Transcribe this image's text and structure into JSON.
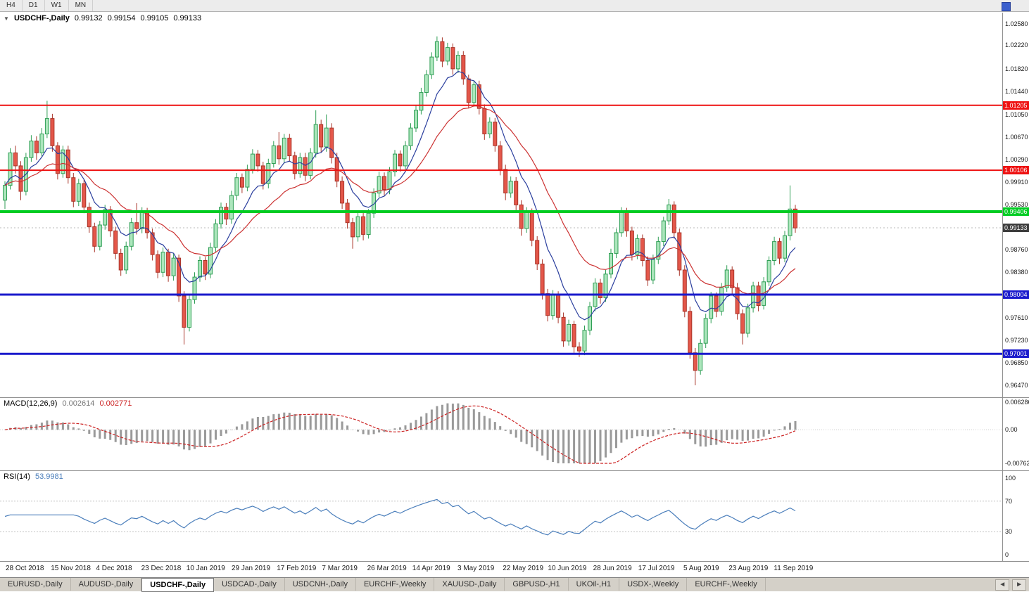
{
  "toolbar": {
    "timeframes": [
      "H4",
      "D1",
      "W1",
      "MN"
    ]
  },
  "icons": {
    "collapse": "▼",
    "tab_prev": "◄",
    "tab_next": "►"
  },
  "chart_data": {
    "type": "candlestick",
    "title": "USDCHF-,Daily",
    "ohlc_header": {
      "open": "0.99132",
      "high": "0.99154",
      "low": "0.99105",
      "close": "0.99133"
    },
    "x_labels": [
      "28 Oct 2018",
      "15 Nov 2018",
      "4 Dec 2018",
      "23 Dec 2018",
      "10 Jan 2019",
      "29 Jan 2019",
      "17 Feb 2019",
      "7 Mar 2019",
      "26 Mar 2019",
      "14 Apr 2019",
      "3 May 2019",
      "22 May 2019",
      "10 Jun 2019",
      "28 Jun 2019",
      "17 Jul 2019",
      "5 Aug 2019",
      "23 Aug 2019",
      "11 Sep 2019"
    ],
    "price_axis": {
      "min": 0.9647,
      "max": 1.0258,
      "ticks": [
        "1.02580",
        "1.02220",
        "1.01820",
        "1.01440",
        "1.01050",
        "1.00670",
        "1.00290",
        "0.99910",
        "0.99530",
        "0.98760",
        "0.98380",
        "0.97610",
        "0.97230",
        "0.96850",
        "0.96470"
      ]
    },
    "levels": [
      {
        "value": 1.01205,
        "label": "1.01205",
        "color": "#ee1111",
        "width": 2
      },
      {
        "value": 1.00106,
        "label": "1.00106",
        "color": "#ee1111",
        "width": 2
      },
      {
        "value": 0.99406,
        "label": "0.99406",
        "color": "#00cc22",
        "width": 4
      },
      {
        "value": 0.98004,
        "label": "0.98004",
        "color": "#1a1acc",
        "width": 3
      },
      {
        "value": 0.97001,
        "label": "0.97001",
        "color": "#1a1acc",
        "width": 3
      }
    ],
    "current_price": {
      "value": 0.99133,
      "label": "0.99133",
      "bg": "#3d3d3d"
    },
    "style": {
      "up_fill": "#ace6bc",
      "up_stroke": "#2f9e55",
      "down_fill": "#e4574a",
      "down_stroke": "#a83428",
      "ma_fast_color": "#2b3f9e",
      "ma_slow_color": "#cc3333",
      "ma_fast_period": 8,
      "ma_slow_period": 21
    },
    "ohlc": [
      [
        0.996,
        0.9992,
        0.9945,
        0.9985
      ],
      [
        0.9985,
        1.0048,
        0.9978,
        1.004
      ],
      [
        1.004,
        1.0052,
        1.0005,
        1.0018
      ],
      [
        1.0018,
        1.0026,
        0.996,
        0.9975
      ],
      [
        0.9975,
        1.004,
        0.9968,
        1.0032
      ],
      [
        1.0032,
        1.007,
        1.0025,
        1.006
      ],
      [
        1.006,
        1.0068,
        1.0028,
        1.004
      ],
      [
        1.004,
        1.0082,
        1.0034,
        1.0072
      ],
      [
        1.0072,
        1.0128,
        1.0065,
        1.0098
      ],
      [
        1.0098,
        1.0106,
        1.0042,
        1.0052
      ],
      [
        1.0052,
        1.0058,
        0.9995,
        1.0005
      ],
      [
        1.0005,
        1.0052,
        0.9998,
        1.0045
      ],
      [
        1.0045,
        1.0052,
        0.9988,
        0.9998
      ],
      [
        0.9998,
        1.0006,
        0.9948,
        0.9958
      ],
      [
        0.9958,
        0.9996,
        0.995,
        0.9988
      ],
      [
        0.9988,
        0.9995,
        0.9938,
        0.9948
      ],
      [
        0.9948,
        0.9956,
        0.9905,
        0.9915
      ],
      [
        0.9915,
        0.9922,
        0.9872,
        0.9882
      ],
      [
        0.9882,
        0.9925,
        0.9875,
        0.9918
      ],
      [
        0.9918,
        0.9952,
        0.991,
        0.9944
      ],
      [
        0.9944,
        0.995,
        0.9898,
        0.9908
      ],
      [
        0.9908,
        0.9915,
        0.986,
        0.987
      ],
      [
        0.987,
        0.9878,
        0.9832,
        0.9842
      ],
      [
        0.9842,
        0.989,
        0.9835,
        0.9882
      ],
      [
        0.9882,
        0.993,
        0.9875,
        0.9922
      ],
      [
        0.9922,
        0.9955,
        0.9902,
        0.9912
      ],
      [
        0.9912,
        0.9948,
        0.9904,
        0.994
      ],
      [
        0.994,
        0.9947,
        0.9895,
        0.9905
      ],
      [
        0.9905,
        0.9912,
        0.9858,
        0.9868
      ],
      [
        0.9868,
        0.9875,
        0.9828,
        0.9838
      ],
      [
        0.9838,
        0.988,
        0.983,
        0.9872
      ],
      [
        0.9872,
        0.9878,
        0.9822,
        0.9832
      ],
      [
        0.9832,
        0.987,
        0.9824,
        0.9862
      ],
      [
        0.9862,
        0.9868,
        0.9788,
        0.9798
      ],
      [
        0.9798,
        0.9806,
        0.9716,
        0.9745
      ],
      [
        0.9745,
        0.98,
        0.9738,
        0.9792
      ],
      [
        0.9792,
        0.9838,
        0.9785,
        0.983
      ],
      [
        0.983,
        0.9865,
        0.9822,
        0.9858
      ],
      [
        0.9858,
        0.9864,
        0.9825,
        0.9835
      ],
      [
        0.9835,
        0.9888,
        0.9828,
        0.988
      ],
      [
        0.988,
        0.9928,
        0.9872,
        0.992
      ],
      [
        0.992,
        0.9956,
        0.9912,
        0.9948
      ],
      [
        0.9948,
        0.9955,
        0.9918,
        0.9928
      ],
      [
        0.9928,
        0.9976,
        0.992,
        0.9968
      ],
      [
        0.9968,
        1.0006,
        0.996,
        0.9998
      ],
      [
        0.9998,
        1.0005,
        0.9972,
        0.9982
      ],
      [
        0.9982,
        1.002,
        0.9975,
        1.0012
      ],
      [
        1.0012,
        1.0046,
        1.0005,
        1.0038
      ],
      [
        1.0038,
        1.0045,
        1.0008,
        1.0018
      ],
      [
        1.0018,
        1.0025,
        0.9978,
        0.9988
      ],
      [
        0.9988,
        1.003,
        0.998,
        1.0022
      ],
      [
        1.0022,
        1.006,
        1.0015,
        1.0052
      ],
      [
        1.0052,
        1.0075,
        1.002,
        1.003
      ],
      [
        1.003,
        1.0072,
        1.0022,
        1.0065
      ],
      [
        1.0065,
        1.0072,
        1.0025,
        1.0035
      ],
      [
        1.0035,
        1.0042,
        0.9995,
        1.0005
      ],
      [
        1.0005,
        1.004,
        0.9998,
        1.0032
      ],
      [
        1.0032,
        1.004,
        0.9992,
        1.0002
      ],
      [
        1.0002,
        1.0048,
        0.9995,
        1.004
      ],
      [
        1.004,
        1.0112,
        1.0032,
        1.0088
      ],
      [
        1.0088,
        1.0096,
        1.004,
        1.005
      ],
      [
        1.005,
        1.0105,
        1.0042,
        1.0082
      ],
      [
        1.0082,
        1.009,
        1.0022,
        1.0032
      ],
      [
        1.0032,
        1.004,
        0.9982,
        0.9992
      ],
      [
        0.9992,
        1.0,
        0.9945,
        0.9955
      ],
      [
        0.9955,
        0.9962,
        0.9912,
        0.9922
      ],
      [
        0.9922,
        0.993,
        0.9878,
        0.9898
      ],
      [
        0.9898,
        0.994,
        0.989,
        0.9932
      ],
      [
        0.9932,
        0.9939,
        0.9892,
        0.9902
      ],
      [
        0.9902,
        0.9945,
        0.9895,
        0.9938
      ],
      [
        0.9938,
        0.998,
        0.993,
        0.9972
      ],
      [
        0.9972,
        1.0008,
        0.9965,
        1.0
      ],
      [
        1.0,
        1.0007,
        0.9968,
        0.9978
      ],
      [
        0.9978,
        1.0016,
        0.997,
        1.0008
      ],
      [
        1.0008,
        1.0045,
        1.0,
        1.0038
      ],
      [
        1.0038,
        1.0044,
        1.0008,
        1.0018
      ],
      [
        1.0018,
        1.006,
        1.001,
        1.0052
      ],
      [
        1.0052,
        1.009,
        1.0045,
        1.0082
      ],
      [
        1.0082,
        1.012,
        1.0075,
        1.0112
      ],
      [
        1.0112,
        1.015,
        1.0105,
        1.0142
      ],
      [
        1.0142,
        1.018,
        1.0135,
        1.0172
      ],
      [
        1.0172,
        1.021,
        1.0165,
        1.0202
      ],
      [
        1.0202,
        1.0237,
        1.0195,
        1.0228
      ],
      [
        1.0228,
        1.0235,
        1.0185,
        1.0195
      ],
      [
        1.0195,
        1.0226,
        1.0188,
        1.0218
      ],
      [
        1.0218,
        1.0225,
        1.0172,
        1.0182
      ],
      [
        1.0182,
        1.0212,
        1.0175,
        1.0205
      ],
      [
        1.0205,
        1.0212,
        1.0155,
        1.0165
      ],
      [
        1.0165,
        1.0172,
        1.0115,
        1.0125
      ],
      [
        1.0125,
        1.0162,
        1.0118,
        1.0155
      ],
      [
        1.0155,
        1.0162,
        1.0105,
        1.0115
      ],
      [
        1.0115,
        1.0122,
        1.0062,
        1.0072
      ],
      [
        1.0072,
        1.01,
        1.0065,
        1.0092
      ],
      [
        1.0092,
        1.0099,
        1.0042,
        1.0052
      ],
      [
        1.0052,
        1.006,
        1.0002,
        1.0012
      ],
      [
        1.0012,
        1.002,
        0.996,
        0.9972
      ],
      [
        0.9972,
        1.0,
        0.9964,
        0.9992
      ],
      [
        0.9992,
        0.9999,
        0.9942,
        0.9952
      ],
      [
        0.9952,
        0.996,
        0.99,
        0.9912
      ],
      [
        0.9912,
        0.9948,
        0.9905,
        0.994
      ],
      [
        0.994,
        0.9946,
        0.9882,
        0.9892
      ],
      [
        0.9892,
        0.9899,
        0.9842,
        0.9852
      ],
      [
        0.9852,
        0.986,
        0.9792,
        0.9802
      ],
      [
        0.9802,
        0.981,
        0.9755,
        0.9765
      ],
      [
        0.9765,
        0.9808,
        0.9758,
        0.98
      ],
      [
        0.98,
        0.9806,
        0.9752,
        0.9762
      ],
      [
        0.9762,
        0.977,
        0.9712,
        0.9722
      ],
      [
        0.9722,
        0.9758,
        0.9714,
        0.975
      ],
      [
        0.975,
        0.9756,
        0.9702,
        0.9712
      ],
      [
        0.9712,
        0.972,
        0.9695,
        0.9705
      ],
      [
        0.9705,
        0.9748,
        0.9698,
        0.974
      ],
      [
        0.974,
        0.9788,
        0.9732,
        0.978
      ],
      [
        0.978,
        0.9828,
        0.9772,
        0.982
      ],
      [
        0.982,
        0.9827,
        0.9785,
        0.9795
      ],
      [
        0.9795,
        0.9842,
        0.9788,
        0.9835
      ],
      [
        0.9835,
        0.9878,
        0.9828,
        0.987
      ],
      [
        0.987,
        0.9912,
        0.9862,
        0.9905
      ],
      [
        0.9905,
        0.9948,
        0.9898,
        0.994
      ],
      [
        0.994,
        0.9947,
        0.9898,
        0.9908
      ],
      [
        0.9908,
        0.9915,
        0.9858,
        0.9868
      ],
      [
        0.9868,
        0.9902,
        0.986,
        0.9895
      ],
      [
        0.9895,
        0.9902,
        0.9848,
        0.9858
      ],
      [
        0.9858,
        0.9865,
        0.9815,
        0.9825
      ],
      [
        0.9825,
        0.9868,
        0.9818,
        0.986
      ],
      [
        0.986,
        0.9898,
        0.9852,
        0.989
      ],
      [
        0.989,
        0.9932,
        0.9882,
        0.9925
      ],
      [
        0.9925,
        0.9962,
        0.9918,
        0.9952
      ],
      [
        0.9952,
        0.9958,
        0.9895,
        0.9905
      ],
      [
        0.9905,
        0.9912,
        0.9832,
        0.9842
      ],
      [
        0.9842,
        0.985,
        0.9762,
        0.9772
      ],
      [
        0.9772,
        0.978,
        0.9692,
        0.9702
      ],
      [
        0.9702,
        0.971,
        0.9647,
        0.9672
      ],
      [
        0.9672,
        0.9725,
        0.9665,
        0.9718
      ],
      [
        0.9718,
        0.9768,
        0.971,
        0.976
      ],
      [
        0.976,
        0.9805,
        0.9752,
        0.9798
      ],
      [
        0.9798,
        0.9804,
        0.9762,
        0.9772
      ],
      [
        0.9772,
        0.982,
        0.9765,
        0.9812
      ],
      [
        0.9812,
        0.985,
        0.9805,
        0.9842
      ],
      [
        0.9842,
        0.9848,
        0.9802,
        0.9812
      ],
      [
        0.9812,
        0.982,
        0.9758,
        0.9768
      ],
      [
        0.9768,
        0.9775,
        0.9716,
        0.9735
      ],
      [
        0.9735,
        0.9785,
        0.9728,
        0.9778
      ],
      [
        0.9778,
        0.9822,
        0.977,
        0.9815
      ],
      [
        0.9815,
        0.9822,
        0.9772,
        0.9782
      ],
      [
        0.9782,
        0.983,
        0.9775,
        0.9822
      ],
      [
        0.9822,
        0.9865,
        0.9815,
        0.9858
      ],
      [
        0.9858,
        0.9898,
        0.985,
        0.989
      ],
      [
        0.989,
        0.9896,
        0.9852,
        0.9862
      ],
      [
        0.9862,
        0.9908,
        0.9855,
        0.99
      ],
      [
        0.99,
        0.9985,
        0.9892,
        0.9945
      ],
      [
        0.9945,
        0.9952,
        0.9905,
        0.9913
      ]
    ]
  },
  "macd": {
    "label": "MACD(12,26,9)",
    "value_main": "0.002614",
    "value_signal": "0.002771",
    "scale_top": "0.006286",
    "scale_zero": "0.00",
    "scale_bottom": "-0.00762",
    "range": [
      -0.00762,
      0.006286
    ],
    "fast": 12,
    "slow": 26,
    "signal": 9,
    "hist_color": "#9a9a9a",
    "signal_color": "#cc2222"
  },
  "rsi": {
    "label": "RSI(14)",
    "value": "53.9981",
    "period": 14,
    "scale": [
      "100",
      "70",
      "30",
      "0"
    ],
    "levels": [
      70,
      30
    ],
    "line_color": "#4a7ebb"
  },
  "tabs": {
    "items": [
      "EURUSD-,Daily",
      "AUDUSD-,Daily",
      "USDCHF-,Daily",
      "USDCAD-,Daily",
      "USDCNH-,Daily",
      "EURCHF-,Weekly",
      "XAUUSD-,Daily",
      "GBPUSD-,H1",
      "UKOil-,H1",
      "USDX-,Weekly",
      "EURCHF-,Weekly"
    ],
    "active_index": 2
  }
}
